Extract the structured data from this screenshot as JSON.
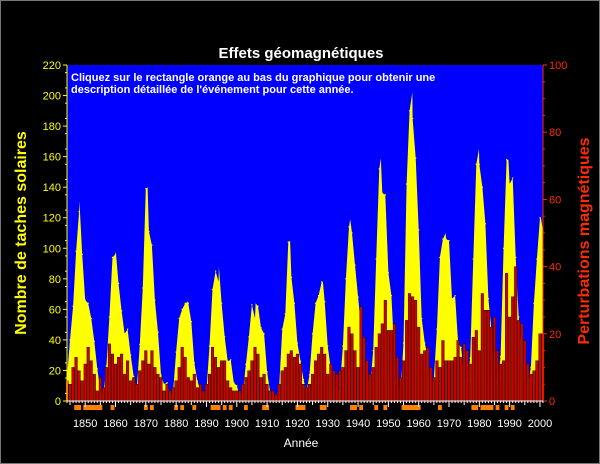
{
  "chart_data": {
    "type": "bar",
    "title": "Effets géomagnétiques",
    "annotation_line1": "Cliquez sur le rectangle orange au bas du graphique pour obtenir une",
    "annotation_line2": "description détaillée de l'événement pour cette année.",
    "xlabel": "Année",
    "ylabel_left": "Nombre de taches solaires",
    "ylabel_right": "Perturbations magnétiques",
    "xlim": [
      1844,
      2001
    ],
    "ylim_left": [
      0,
      220
    ],
    "ylim_right": [
      0,
      100
    ],
    "x_ticks": [
      1850,
      1860,
      1870,
      1880,
      1890,
      1900,
      1910,
      1920,
      1930,
      1940,
      1950,
      1960,
      1970,
      1980,
      1990,
      2000
    ],
    "y_ticks_left": [
      0,
      20,
      40,
      60,
      80,
      100,
      120,
      140,
      160,
      180,
      200,
      220
    ],
    "y_ticks_right": [
      0,
      20,
      40,
      60,
      80,
      100
    ],
    "grid": false,
    "colors": {
      "plot_background": "#0000ff",
      "sunspots": "#ffff00",
      "disturbances": "#cc0000",
      "disturbance_outline": "#000000",
      "event_markers": "#ff8000",
      "left_axis": "#ffff00",
      "right_axis": "#ff2a00",
      "x_axis": "#ffffff"
    },
    "sunspot_cycle_peaks": [
      {
        "year": 1848.1,
        "value": 131
      },
      {
        "year": 1860.1,
        "value": 98
      },
      {
        "year": 1870.6,
        "value": 140
      },
      {
        "year": 1883.9,
        "value": 65
      },
      {
        "year": 1894.1,
        "value": 88
      },
      {
        "year": 1906.2,
        "value": 64
      },
      {
        "year": 1917.6,
        "value": 105
      },
      {
        "year": 1928.4,
        "value": 78
      },
      {
        "year": 1937.4,
        "value": 119
      },
      {
        "year": 1947.5,
        "value": 159
      },
      {
        "year": 1957.9,
        "value": 202
      },
      {
        "year": 1968.9,
        "value": 110
      },
      {
        "year": 1979.9,
        "value": 165
      },
      {
        "year": 1989.6,
        "value": 158
      },
      {
        "year": 2000.3,
        "value": 120
      }
    ],
    "series": [
      {
        "name": "Nombre de taches solaires",
        "axis": "left",
        "style": "area",
        "x": [
          1844,
          1845,
          1846,
          1847,
          1848,
          1849,
          1850,
          1851,
          1852,
          1853,
          1854,
          1855,
          1856,
          1857,
          1858,
          1859,
          1860,
          1861,
          1862,
          1863,
          1864,
          1865,
          1866,
          1867,
          1868,
          1869,
          1870,
          1871,
          1872,
          1873,
          1874,
          1875,
          1876,
          1877,
          1878,
          1879,
          1880,
          1881,
          1882,
          1883,
          1884,
          1885,
          1886,
          1887,
          1888,
          1889,
          1890,
          1891,
          1892,
          1893,
          1894,
          1895,
          1896,
          1897,
          1898,
          1899,
          1900,
          1901,
          1902,
          1903,
          1904,
          1905,
          1906,
          1907,
          1908,
          1909,
          1910,
          1911,
          1912,
          1913,
          1914,
          1915,
          1916,
          1917,
          1918,
          1919,
          1920,
          1921,
          1922,
          1923,
          1924,
          1925,
          1926,
          1927,
          1928,
          1929,
          1930,
          1931,
          1932,
          1933,
          1934,
          1935,
          1936,
          1937,
          1938,
          1939,
          1940,
          1941,
          1942,
          1943,
          1944,
          1945,
          1946,
          1947,
          1948,
          1949,
          1950,
          1951,
          1952,
          1953,
          1954,
          1955,
          1956,
          1957,
          1958,
          1959,
          1960,
          1961,
          1962,
          1963,
          1964,
          1965,
          1966,
          1967,
          1968,
          1969,
          1970,
          1971,
          1972,
          1973,
          1974,
          1975,
          1976,
          1977,
          1978,
          1979,
          1980,
          1981,
          1982,
          1983,
          1984,
          1985,
          1986,
          1987,
          1988,
          1989,
          1990,
          1991,
          1992,
          1993,
          1994,
          1995,
          1996,
          1997,
          1998,
          1999,
          2000,
          2001
        ],
        "values": [
          15,
          40,
          62,
          98,
          124,
          96,
          66,
          64,
          54,
          39,
          21,
          7,
          4,
          23,
          55,
          94,
          96,
          77,
          59,
          44,
          47,
          30,
          16,
          7,
          37,
          74,
          139,
          111,
          102,
          66,
          45,
          17,
          11,
          12,
          3,
          6,
          32,
          54,
          60,
          64,
          64,
          52,
          25,
          13,
          7,
          6,
          7,
          36,
          73,
          85,
          78,
          64,
          42,
          26,
          27,
          12,
          10,
          3,
          5,
          24,
          42,
          63,
          54,
          62,
          48,
          44,
          19,
          6,
          4,
          1,
          10,
          47,
          57,
          104,
          81,
          64,
          38,
          26,
          14,
          6,
          17,
          44,
          64,
          69,
          78,
          65,
          36,
          21,
          11,
          6,
          9,
          36,
          80,
          114,
          110,
          89,
          68,
          48,
          31,
          16,
          10,
          33,
          93,
          152,
          136,
          135,
          84,
          69,
          31,
          14,
          4,
          38,
          142,
          190,
          185,
          159,
          112,
          54,
          38,
          28,
          10,
          15,
          47,
          94,
          106,
          106,
          105,
          67,
          69,
          38,
          35,
          16,
          13,
          28,
          93,
          155,
          155,
          140,
          116,
          67,
          46,
          18,
          13,
          29,
          100,
          158,
          142,
          146,
          94,
          55,
          30,
          18,
          9,
          22,
          64,
          93,
          120,
          111
        ]
      },
      {
        "name": "Perturbations magnétiques",
        "axis": "right",
        "style": "bar",
        "x": [
          1844,
          1845,
          1846,
          1847,
          1848,
          1849,
          1850,
          1851,
          1852,
          1853,
          1854,
          1855,
          1856,
          1857,
          1858,
          1859,
          1860,
          1861,
          1862,
          1863,
          1864,
          1865,
          1866,
          1867,
          1868,
          1869,
          1870,
          1871,
          1872,
          1873,
          1874,
          1875,
          1876,
          1877,
          1878,
          1879,
          1880,
          1881,
          1882,
          1883,
          1884,
          1885,
          1886,
          1887,
          1888,
          1889,
          1890,
          1891,
          1892,
          1893,
          1894,
          1895,
          1896,
          1897,
          1898,
          1899,
          1900,
          1901,
          1902,
          1903,
          1904,
          1905,
          1906,
          1907,
          1908,
          1909,
          1910,
          1911,
          1912,
          1913,
          1914,
          1915,
          1916,
          1917,
          1918,
          1919,
          1920,
          1921,
          1922,
          1923,
          1924,
          1925,
          1926,
          1927,
          1928,
          1929,
          1930,
          1931,
          1932,
          1933,
          1934,
          1935,
          1936,
          1937,
          1938,
          1939,
          1940,
          1941,
          1942,
          1943,
          1944,
          1945,
          1946,
          1947,
          1948,
          1949,
          1950,
          1951,
          1952,
          1953,
          1954,
          1955,
          1956,
          1957,
          1958,
          1959,
          1960,
          1961,
          1962,
          1963,
          1964,
          1965,
          1966,
          1967,
          1968,
          1969,
          1970,
          1971,
          1972,
          1973,
          1974,
          1975,
          1976,
          1977,
          1978,
          1979,
          1980,
          1981,
          1982,
          1983,
          1984,
          1985,
          1986,
          1987,
          1988,
          1989,
          1990,
          1991,
          1992,
          1993,
          1994,
          1995,
          1996,
          1997,
          1998,
          1999,
          2000,
          2001
        ],
        "values": [
          6,
          5,
          10,
          13,
          9,
          6,
          11,
          16,
          12,
          8,
          3,
          7,
          4,
          10,
          17,
          14,
          11,
          13,
          14,
          8,
          12,
          6,
          7,
          5,
          9,
          12,
          15,
          11,
          15,
          10,
          8,
          7,
          3,
          5,
          3,
          4,
          6,
          10,
          16,
          13,
          7,
          6,
          8,
          4,
          5,
          3,
          5,
          8,
          16,
          13,
          10,
          12,
          12,
          6,
          4,
          3,
          3,
          3,
          5,
          7,
          9,
          12,
          16,
          14,
          7,
          8,
          5,
          3,
          3,
          2,
          5,
          9,
          10,
          14,
          15,
          13,
          14,
          11,
          5,
          4,
          5,
          8,
          12,
          14,
          16,
          14,
          8,
          11,
          9,
          8,
          9,
          10,
          15,
          22,
          20,
          15,
          10,
          28,
          19,
          12,
          8,
          10,
          16,
          20,
          23,
          30,
          21,
          21,
          23,
          13,
          7,
          12,
          24,
          32,
          31,
          30,
          22,
          14,
          15,
          16,
          10,
          7,
          12,
          10,
          18,
          12,
          12,
          12,
          13,
          18,
          13,
          17,
          15,
          11,
          19,
          21,
          15,
          32,
          27,
          27,
          22,
          25,
          15,
          11,
          12,
          38,
          25,
          31,
          40,
          24,
          23,
          18,
          11,
          8,
          9,
          12,
          20,
          20
        ]
      }
    ],
    "event_marker_years": [
      1847,
      1848,
      1850,
      1851,
      1852,
      1853,
      1854,
      1855,
      1859,
      1870,
      1872,
      1880,
      1882,
      1886,
      1892,
      1893,
      1894,
      1896,
      1898,
      1903,
      1909,
      1910,
      1920,
      1921,
      1922,
      1928,
      1929,
      1938,
      1939,
      1941,
      1946,
      1949,
      1955,
      1956,
      1957,
      1958,
      1959,
      1960,
      1967,
      1978,
      1979,
      1981,
      1982,
      1983,
      1984,
      1986,
      1989,
      1991
    ]
  }
}
